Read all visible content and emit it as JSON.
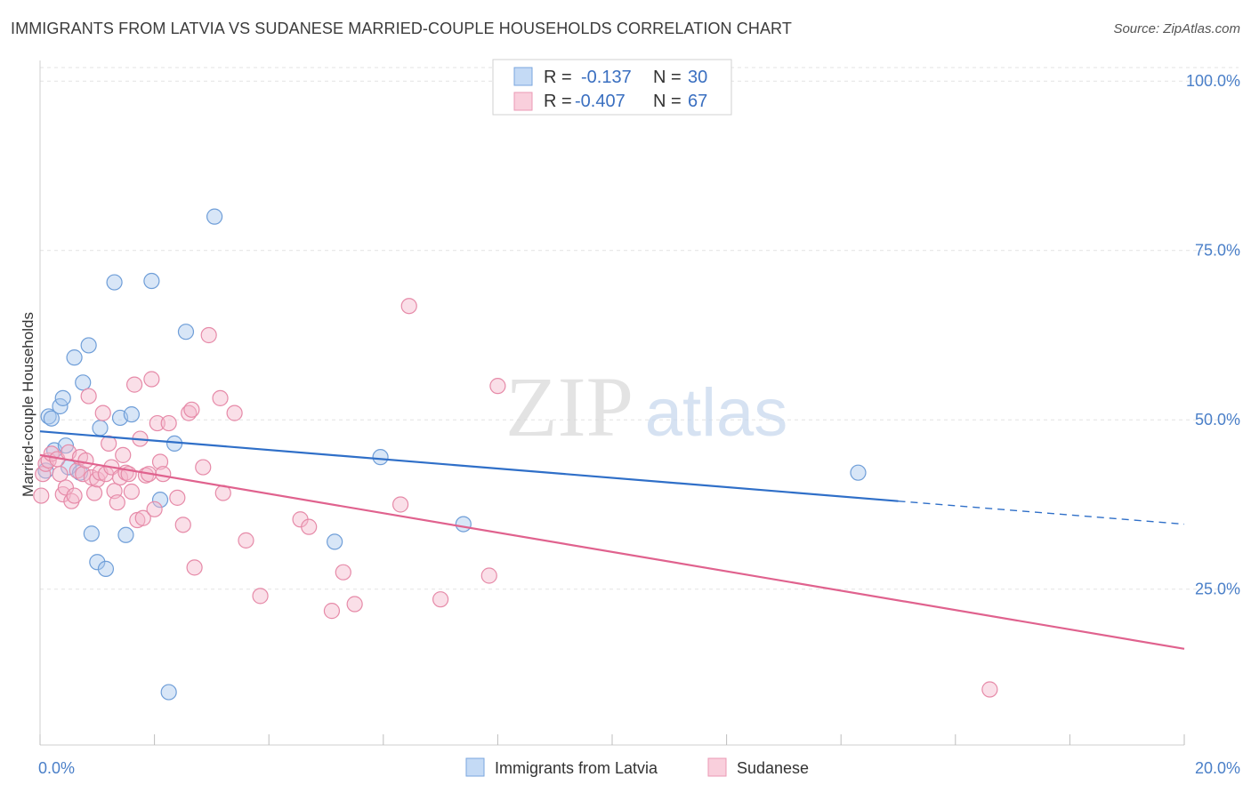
{
  "header": {
    "title": "IMMIGRANTS FROM LATVIA VS SUDANESE MARRIED-COUPLE HOUSEHOLDS CORRELATION CHART",
    "source": "Source: ZipAtlas.com"
  },
  "watermark": {
    "part1": "ZIP",
    "part2": "atlas"
  },
  "legend": {
    "rows": [
      {
        "r_label": "R =",
        "r_value": "-0.137",
        "n_label": "N =",
        "n_value": "30"
      },
      {
        "r_label": "R =",
        "r_value": "-0.407",
        "n_label": "N =",
        "n_value": "67"
      }
    ]
  },
  "chart_data": {
    "type": "scatter",
    "title": "IMMIGRANTS FROM LATVIA VS SUDANESE MARRIED-COUPLE HOUSEHOLDS CORRELATION CHART",
    "xlabel": "",
    "ylabel": "Married-couple Households",
    "xlim": [
      0,
      20
    ],
    "ylim": [
      2,
      102
    ],
    "x_tick_labels": [
      "0.0%",
      "20.0%"
    ],
    "y_ticks": [
      25,
      50,
      75,
      100
    ],
    "y_tick_labels": [
      "25.0%",
      "50.0%",
      "75.0%",
      "100.0%"
    ],
    "grid": true,
    "legend_position": "top-center",
    "series": [
      {
        "name": "Immigrants from Latvia",
        "color": "#a8c8ee",
        "stroke": "#6f9ed8",
        "trend_color": "#2f6fc8",
        "trend": {
          "x0": 0.0,
          "y0": 48.3,
          "x1": 15.0,
          "y1": 38.0,
          "dashed_to_x": 20.0,
          "dashed_to_y": 34.6
        },
        "points": [
          [
            0.1,
            42.5
          ],
          [
            0.15,
            50.5
          ],
          [
            0.2,
            50.2
          ],
          [
            0.25,
            45.5
          ],
          [
            0.35,
            52.0
          ],
          [
            0.4,
            53.2
          ],
          [
            0.45,
            46.2
          ],
          [
            0.5,
            43.0
          ],
          [
            0.6,
            59.2
          ],
          [
            0.7,
            42.2
          ],
          [
            0.75,
            55.5
          ],
          [
            0.85,
            61.0
          ],
          [
            0.9,
            33.2
          ],
          [
            1.0,
            29.0
          ],
          [
            1.05,
            48.8
          ],
          [
            1.15,
            28.0
          ],
          [
            1.3,
            70.3
          ],
          [
            1.4,
            50.3
          ],
          [
            1.5,
            33.0
          ],
          [
            1.6,
            50.8
          ],
          [
            1.95,
            70.5
          ],
          [
            2.1,
            38.2
          ],
          [
            2.25,
            9.8
          ],
          [
            2.35,
            46.5
          ],
          [
            2.55,
            63.0
          ],
          [
            3.05,
            80.0
          ],
          [
            5.15,
            32.0
          ],
          [
            5.95,
            44.5
          ],
          [
            7.4,
            34.6
          ],
          [
            14.3,
            42.2
          ]
        ]
      },
      {
        "name": "Sudanese",
        "color": "#f5b8cc",
        "stroke": "#e68aa8",
        "trend_color": "#e0628e",
        "trend": {
          "x0": 0.0,
          "y0": 44.8,
          "x1": 20.0,
          "y1": 16.2
        },
        "points": [
          [
            0.02,
            38.8
          ],
          [
            0.05,
            42.0
          ],
          [
            0.1,
            43.5
          ],
          [
            0.15,
            44.0
          ],
          [
            0.2,
            45.0
          ],
          [
            0.3,
            44.2
          ],
          [
            0.35,
            42.0
          ],
          [
            0.4,
            39.0
          ],
          [
            0.45,
            40.0
          ],
          [
            0.5,
            45.2
          ],
          [
            0.55,
            38.0
          ],
          [
            0.6,
            38.8
          ],
          [
            0.65,
            42.5
          ],
          [
            0.7,
            44.5
          ],
          [
            0.75,
            42.0
          ],
          [
            0.8,
            44.0
          ],
          [
            0.85,
            53.5
          ],
          [
            0.9,
            41.5
          ],
          [
            0.95,
            39.2
          ],
          [
            1.0,
            41.2
          ],
          [
            1.05,
            42.2
          ],
          [
            1.1,
            51.0
          ],
          [
            1.15,
            42.0
          ],
          [
            1.2,
            46.5
          ],
          [
            1.25,
            43.0
          ],
          [
            1.3,
            39.5
          ],
          [
            1.35,
            37.8
          ],
          [
            1.4,
            41.5
          ],
          [
            1.45,
            44.8
          ],
          [
            1.5,
            42.2
          ],
          [
            1.55,
            42.0
          ],
          [
            1.6,
            39.4
          ],
          [
            1.65,
            55.2
          ],
          [
            1.7,
            35.2
          ],
          [
            1.75,
            47.2
          ],
          [
            1.8,
            35.5
          ],
          [
            1.85,
            41.8
          ],
          [
            1.9,
            42.0
          ],
          [
            1.95,
            56.0
          ],
          [
            2.0,
            36.8
          ],
          [
            2.05,
            49.5
          ],
          [
            2.1,
            43.8
          ],
          [
            2.15,
            42.0
          ],
          [
            2.25,
            49.5
          ],
          [
            2.4,
            38.5
          ],
          [
            2.5,
            34.5
          ],
          [
            2.6,
            51.0
          ],
          [
            2.65,
            51.5
          ],
          [
            2.7,
            28.2
          ],
          [
            2.85,
            43.0
          ],
          [
            2.95,
            62.5
          ],
          [
            3.15,
            53.2
          ],
          [
            3.2,
            39.2
          ],
          [
            3.4,
            51.0
          ],
          [
            3.6,
            32.2
          ],
          [
            3.85,
            24.0
          ],
          [
            4.55,
            35.3
          ],
          [
            4.7,
            34.2
          ],
          [
            5.1,
            21.8
          ],
          [
            5.3,
            27.5
          ],
          [
            5.5,
            22.8
          ],
          [
            6.3,
            37.5
          ],
          [
            6.45,
            66.8
          ],
          [
            7.0,
            23.5
          ],
          [
            8.0,
            55.0
          ],
          [
            7.85,
            27.0
          ],
          [
            16.6,
            10.2
          ]
        ]
      }
    ]
  }
}
